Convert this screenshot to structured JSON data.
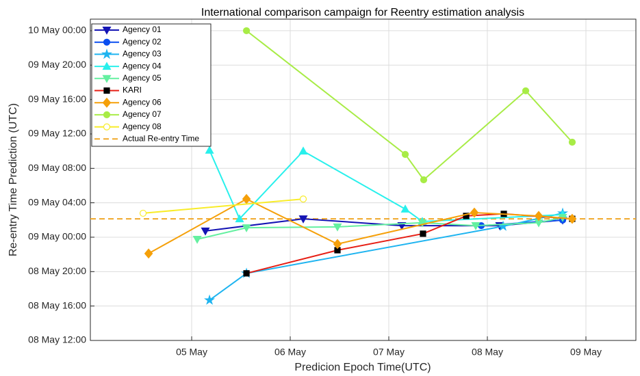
{
  "chart_data": {
    "type": "line",
    "title": "International comparison campaign for Reentry estimation analysis",
    "x_label": "Predicion Epoch Time(UTC)",
    "y_label": "Re-entry Time Prediction (UTC)",
    "xlim": [
      3.972,
      9.507
    ],
    "ylim": [
      8.5,
      10.056
    ],
    "xticks": [
      {
        "value": 5,
        "label": "05 May"
      },
      {
        "value": 6,
        "label": "06 May"
      },
      {
        "value": 7,
        "label": "07 May"
      },
      {
        "value": 8,
        "label": "08 May"
      },
      {
        "value": 9,
        "label": "09 May"
      }
    ],
    "yticks": [
      {
        "value": 8.5,
        "label": "08 May 12:00"
      },
      {
        "value": 8.6667,
        "label": "08 May 16:00"
      },
      {
        "value": 8.8333,
        "label": "08 May 20:00"
      },
      {
        "value": 9,
        "label": "09 May 00:00"
      },
      {
        "value": 9.1667,
        "label": "09 May 04:00"
      },
      {
        "value": 9.3333,
        "label": "09 May 08:00"
      },
      {
        "value": 9.5,
        "label": "09 May 12:00"
      },
      {
        "value": 9.6667,
        "label": "09 May 16:00"
      },
      {
        "value": 9.8333,
        "label": "09 May 20:00"
      },
      {
        "value": 10,
        "label": "10 May 00:00"
      }
    ],
    "grid": true,
    "legend": "upper left",
    "series": [
      {
        "name": "Agency 01",
        "color": "#1414b4",
        "marker": "triangle-down",
        "marker_fill": "#1414b4",
        "x": [
          5.139,
          6.132,
          7.132,
          8.125,
          8.764
        ],
        "values": [
          9.03,
          9.089,
          9.056,
          9.056,
          9.083
        ]
      },
      {
        "name": "Agency 02",
        "color": "#0a4ef0",
        "marker": "circle",
        "marker_fill": "#0a4ef0",
        "x": [
          7.938,
          8.764
        ],
        "values": [
          9.056,
          9.083
        ]
      },
      {
        "name": "Agency 03",
        "color": "#1eb4f0",
        "marker": "star",
        "marker_fill": "#1eb4f0",
        "x": [
          5.181,
          5.556,
          8.16,
          8.764
        ],
        "values": [
          8.695,
          8.825,
          9.053,
          9.116
        ]
      },
      {
        "name": "Agency 04",
        "color": "#28f0ec",
        "marker": "triangle-up",
        "marker_fill": "#28f0ec",
        "x": [
          5.181,
          5.486,
          6.132,
          7.167,
          7.34,
          8.764
        ],
        "values": [
          9.421,
          9.089,
          9.417,
          9.136,
          9.076,
          9.109
        ]
      },
      {
        "name": "Agency 05",
        "color": "#64f0a0",
        "marker": "triangle-down",
        "marker_fill": "#64f0a0",
        "x": [
          5.056,
          5.556,
          6.479,
          7.34,
          7.882,
          8.521,
          8.764
        ],
        "values": [
          8.99,
          9.046,
          9.05,
          9.07,
          9.056,
          9.07,
          9.096
        ]
      },
      {
        "name": "KARI",
        "color": "#e61e14",
        "marker": "square",
        "marker_fill": "#000000",
        "x": [
          5.556,
          6.479,
          7.347,
          7.785,
          8.167,
          8.861
        ],
        "values": [
          8.825,
          8.937,
          9.017,
          9.103,
          9.113,
          9.089
        ]
      },
      {
        "name": "Agency 06",
        "color": "#f5a00a",
        "marker": "diamond",
        "marker_fill": "#f5a00a",
        "x": [
          4.563,
          5.556,
          6.479,
          7.868,
          8.521,
          8.861
        ],
        "values": [
          8.921,
          9.185,
          8.967,
          9.119,
          9.103,
          9.089
        ]
      },
      {
        "name": "Agency 07",
        "color": "#a8ec46",
        "marker": "circle",
        "marker_fill": "#a8ec46",
        "x": [
          5.556,
          7.167,
          7.354,
          8.389,
          8.861
        ],
        "values": [
          10,
          9.401,
          9.278,
          9.709,
          9.46
        ]
      },
      {
        "name": "Agency 08",
        "color": "#f8ec28",
        "marker": "circle",
        "marker_fill": "#ffffff",
        "x": [
          4.507,
          6.132
        ],
        "values": [
          9.116,
          9.185
        ]
      }
    ],
    "reference_lines": [
      {
        "name": "Actual Re-entry Time",
        "value": 9.089,
        "color": "#f0a828",
        "style": "dashed"
      }
    ]
  }
}
